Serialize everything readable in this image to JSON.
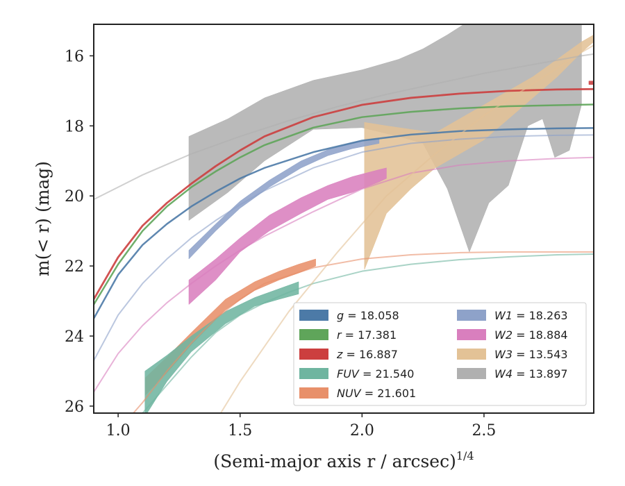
{
  "chart_data": {
    "type": "line",
    "xlabel": "(Semi-major axis r / arcsec)",
    "xlabel_sup": "1/4",
    "ylabel": "m(< r) (mag)",
    "xlim": [
      0.9,
      2.95
    ],
    "ylim": [
      26.2,
      15.1
    ],
    "y_inverted": true,
    "grid": false,
    "legend_placement": "lower-right",
    "x_ticks": [
      1.0,
      1.5,
      2.0,
      2.5
    ],
    "x_tick_labels": [
      "1.0",
      "1.5",
      "2.0",
      "2.5"
    ],
    "y_ticks": [
      16,
      18,
      20,
      22,
      24,
      26
    ],
    "y_tick_labels": [
      "16",
      "18",
      "20",
      "22",
      "24",
      "26"
    ],
    "series": [
      {
        "legend_label": "g = 18.058",
        "var": "g",
        "value": "18.058",
        "color": "#4c7aa7",
        "model_x": [
          0.9,
          1.0,
          1.1,
          1.2,
          1.3,
          1.4,
          1.5,
          1.6,
          1.8,
          2.0,
          2.2,
          2.4,
          2.6,
          2.8,
          2.95
        ],
        "model_y": [
          23.5,
          22.25,
          21.4,
          20.8,
          20.3,
          19.88,
          19.5,
          19.2,
          18.75,
          18.42,
          18.25,
          18.15,
          18.1,
          18.07,
          18.06
        ],
        "band_x": [],
        "band_lower": [],
        "band_upper": []
      },
      {
        "legend_label": "r = 17.381",
        "var": "r",
        "value": "17.381",
        "color": "#5fa55a",
        "model_x": [
          0.9,
          1.0,
          1.1,
          1.2,
          1.3,
          1.4,
          1.5,
          1.6,
          1.8,
          2.0,
          2.2,
          2.4,
          2.6,
          2.8,
          2.95
        ],
        "model_y": [
          23.1,
          21.95,
          21.0,
          20.3,
          19.75,
          19.3,
          18.9,
          18.55,
          18.05,
          17.75,
          17.6,
          17.5,
          17.44,
          17.41,
          17.39
        ],
        "band_x": [],
        "band_lower": [],
        "band_upper": []
      },
      {
        "legend_label": "z = 16.887",
        "var": "z",
        "value": "16.887",
        "color": "#cc3f3f",
        "model_x": [
          0.9,
          1.0,
          1.1,
          1.2,
          1.3,
          1.4,
          1.5,
          1.6,
          1.8,
          2.0,
          2.2,
          2.4,
          2.6,
          2.8,
          2.95
        ],
        "model_y": [
          22.95,
          21.75,
          20.85,
          20.2,
          19.65,
          19.15,
          18.7,
          18.3,
          17.75,
          17.4,
          17.2,
          17.08,
          17.0,
          16.96,
          16.95
        ],
        "band_x": [
          2.93,
          2.95
        ],
        "band_lower": [
          16.82,
          16.82
        ],
        "band_upper": [
          16.72,
          16.72
        ]
      },
      {
        "legend_label": "FUV = 21.540",
        "var": "FUV",
        "value": "21.540",
        "color": "#6fb5a0",
        "model_x": [
          1.1,
          1.2,
          1.3,
          1.4,
          1.5,
          1.6,
          1.7,
          1.8,
          2.0,
          2.2,
          2.4,
          2.6,
          2.8,
          2.95
        ],
        "model_y": [
          26.2,
          25.4,
          24.6,
          23.9,
          23.4,
          23.05,
          22.75,
          22.5,
          22.15,
          21.95,
          21.82,
          21.74,
          21.68,
          21.66
        ],
        "band_x": [
          1.11,
          1.2,
          1.3,
          1.44,
          1.56,
          1.66,
          1.74
        ],
        "band_lower": [
          26.3,
          25.3,
          24.45,
          23.65,
          23.15,
          22.95,
          22.8
        ],
        "band_upper": [
          25.0,
          24.55,
          24.0,
          23.3,
          22.9,
          22.65,
          22.45
        ]
      },
      {
        "legend_label": "NUV = 21.601",
        "var": "NUV",
        "value": "21.601",
        "color": "#e8906a",
        "model_x": [
          1.0,
          1.1,
          1.2,
          1.3,
          1.4,
          1.5,
          1.6,
          1.8,
          2.0,
          2.2,
          2.4,
          2.6,
          2.8,
          2.95
        ],
        "model_y": [
          26.7,
          25.9,
          25.0,
          24.2,
          23.5,
          22.95,
          22.5,
          22.05,
          21.8,
          21.68,
          21.62,
          21.6,
          21.6,
          21.6
        ],
        "band_x": [
          1.11,
          1.2,
          1.3,
          1.44,
          1.56,
          1.66,
          1.74,
          1.81
        ],
        "band_lower": [
          25.7,
          25.05,
          24.25,
          23.25,
          22.7,
          22.4,
          22.2,
          22.0
        ],
        "band_upper": [
          25.2,
          24.6,
          23.9,
          22.95,
          22.45,
          22.15,
          21.95,
          21.8
        ]
      },
      {
        "legend_label": "W1 = 18.263",
        "var": "W1",
        "value": "18.263",
        "color": "#8ea2c9",
        "model_x": [
          0.9,
          1.0,
          1.1,
          1.2,
          1.3,
          1.4,
          1.5,
          1.6,
          1.8,
          2.0,
          2.2,
          2.4,
          2.6,
          2.8,
          2.95
        ],
        "model_y": [
          24.7,
          23.4,
          22.5,
          21.8,
          21.2,
          20.7,
          20.25,
          19.85,
          19.2,
          18.75,
          18.5,
          18.38,
          18.3,
          18.27,
          18.26
        ],
        "band_x": [
          1.29,
          1.4,
          1.5,
          1.62,
          1.75,
          1.86,
          1.96,
          2.07
        ],
        "band_lower": [
          21.8,
          21.0,
          20.35,
          19.75,
          19.2,
          18.85,
          18.65,
          18.5
        ],
        "band_upper": [
          21.55,
          20.8,
          20.15,
          19.55,
          19.0,
          18.68,
          18.48,
          18.35
        ]
      },
      {
        "legend_label": "W2 = 18.884",
        "var": "W2",
        "value": "18.884",
        "color": "#d97fbe",
        "model_x": [
          0.9,
          1.0,
          1.1,
          1.2,
          1.3,
          1.4,
          1.5,
          1.6,
          1.8,
          2.0,
          2.2,
          2.4,
          2.6,
          2.8,
          2.95
        ],
        "model_y": [
          25.6,
          24.5,
          23.7,
          23.05,
          22.5,
          22.0,
          21.55,
          21.15,
          20.45,
          19.8,
          19.35,
          19.12,
          19.0,
          18.93,
          18.9
        ],
        "band_x": [
          1.29,
          1.4,
          1.5,
          1.62,
          1.75,
          1.86,
          1.96,
          2.07,
          2.1
        ],
        "band_lower": [
          23.1,
          22.4,
          21.6,
          21.0,
          20.5,
          20.1,
          19.9,
          19.6,
          19.5
        ],
        "band_upper": [
          22.4,
          21.8,
          21.2,
          20.55,
          20.05,
          19.7,
          19.45,
          19.25,
          19.2
        ]
      },
      {
        "legend_label": "W3 = 13.543",
        "var": "W3",
        "value": "13.543",
        "color": "#e3c296",
        "model_x": [
          1.35,
          1.5,
          1.7,
          1.9,
          2.1,
          2.3,
          2.5,
          2.7,
          2.9,
          2.95
        ],
        "model_y": [
          27.0,
          25.3,
          23.3,
          21.6,
          20.0,
          18.8,
          17.7,
          16.8,
          15.9,
          15.7
        ],
        "band_x": [
          2.01,
          2.1,
          2.2,
          2.3,
          2.4,
          2.5,
          2.6,
          2.7,
          2.8,
          2.9,
          2.95
        ],
        "band_lower": [
          22.1,
          20.5,
          19.8,
          19.2,
          18.8,
          18.4,
          17.8,
          17.2,
          16.6,
          15.9,
          15.6
        ],
        "band_upper": [
          17.9,
          18.0,
          18.1,
          18.2,
          17.8,
          17.4,
          17.0,
          16.6,
          16.1,
          15.6,
          15.4
        ]
      },
      {
        "legend_label": "W4 = 13.897",
        "var": "W4",
        "value": "13.897",
        "color": "#b0b0b0",
        "model_x": [
          0.9,
          1.1,
          1.3,
          1.5,
          1.7,
          1.9,
          2.1,
          2.3,
          2.5,
          2.7,
          2.9,
          2.95
        ],
        "model_y": [
          20.1,
          19.4,
          18.8,
          18.3,
          17.85,
          17.45,
          17.1,
          16.8,
          16.5,
          16.25,
          16.0,
          15.95
        ],
        "band_x": [
          1.29,
          1.45,
          1.6,
          1.8,
          2.0,
          2.15,
          2.25,
          2.35,
          2.44,
          2.52,
          2.6,
          2.68,
          2.74,
          2.79,
          2.85,
          2.9
        ],
        "band_lower": [
          20.7,
          19.9,
          19.0,
          18.1,
          18.05,
          18.3,
          18.5,
          19.8,
          21.6,
          20.2,
          19.7,
          18.0,
          17.8,
          18.9,
          18.7,
          17.4
        ],
        "band_upper": [
          18.3,
          17.8,
          17.2,
          16.7,
          16.4,
          16.1,
          15.8,
          15.4,
          15.0,
          15.0,
          15.0,
          15.0,
          15.0,
          15.0,
          15.0,
          15.0
        ]
      }
    ]
  }
}
